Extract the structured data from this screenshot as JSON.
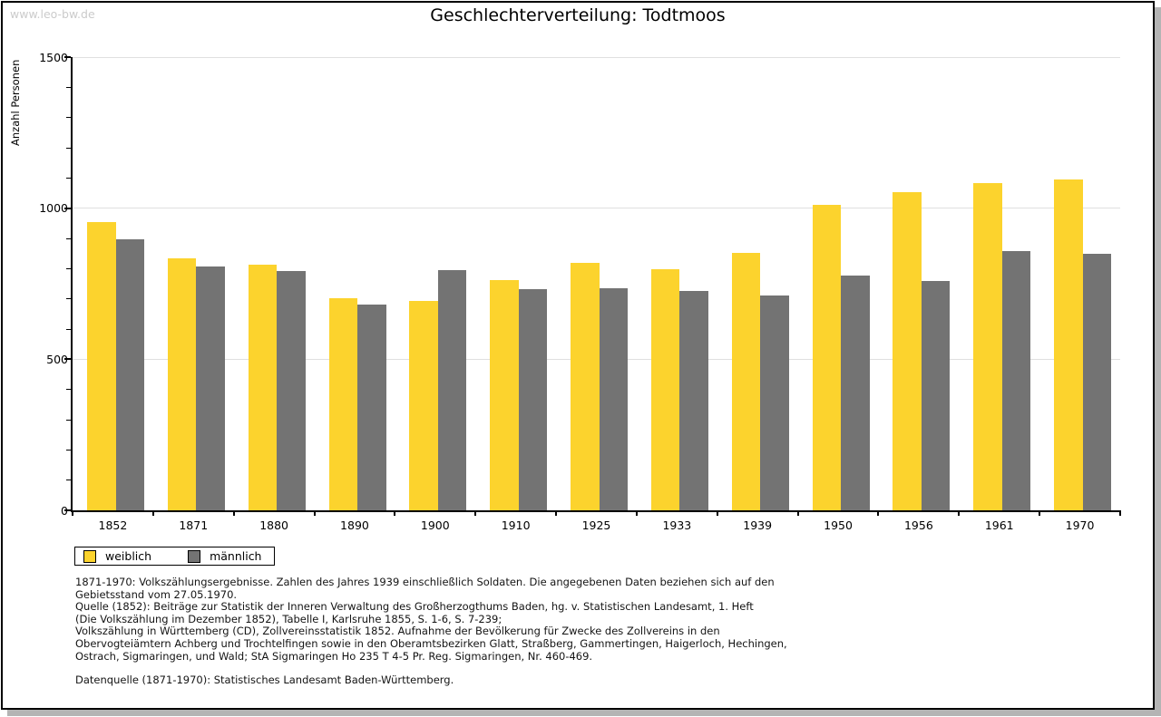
{
  "watermark": "www.leo-bw.de",
  "title": "Geschlechterverteilung: Todtmoos",
  "chart_data": {
    "type": "bar",
    "title": "Geschlechterverteilung: Todtmoos",
    "xlabel": "",
    "ylabel": "Anzahl Personen",
    "ylim": [
      0,
      1500
    ],
    "y_major_ticks": [
      0,
      500,
      1000,
      1500
    ],
    "y_minor_tick_step": 100,
    "grid": "horizontal-light-gray",
    "legend_position": "bottom-left",
    "categories": [
      "1852",
      "1871",
      "1880",
      "1890",
      "1900",
      "1910",
      "1925",
      "1933",
      "1939",
      "1950",
      "1956",
      "1961",
      "1970"
    ],
    "series": [
      {
        "name": "weiblich",
        "key": "weiblich",
        "color": "#fcd32d",
        "values": [
          954,
          833,
          814,
          701,
          693,
          763,
          820,
          799,
          852,
          1012,
          1053,
          1084,
          1096
        ]
      },
      {
        "name": "männlich",
        "key": "maennlich",
        "color": "#737373",
        "values": [
          897,
          808,
          791,
          682,
          795,
          731,
          736,
          727,
          712,
          778,
          758,
          858,
          850
        ]
      }
    ]
  },
  "legend": {
    "items": [
      {
        "label": "weiblich",
        "key": "weiblich",
        "color": "#fcd32d"
      },
      {
        "label": "männlich",
        "key": "maennlich",
        "color": "#737373"
      }
    ]
  },
  "footnotes": {
    "lines": [
      "1871-1970: Volkszählungsergebnisse. Zahlen des Jahres 1939 einschließlich Soldaten. Die angegebenen Daten beziehen sich auf den",
      "Gebietsstand vom 27.05.1970.",
      "Quelle (1852): Beiträge zur Statistik der Inneren Verwaltung des Großherzogthums Baden, hg. v. Statistischen Landesamt, 1. Heft",
      "(Die Volkszählung im Dezember 1852), Tabelle I, Karlsruhe 1855, S. 1-6, S. 7-239;",
      "Volkszählung in Württemberg (CD), Zollvereinsstatistik 1852. Aufnahme der Bevölkerung für Zwecke des Zollvereins in den",
      "Obervogteiämtern Achberg und Trochtelfingen sowie in den Oberamtsbezirken Glatt, Straßberg, Gammertingen, Haigerloch, Hechingen,",
      "Ostrach, Sigmaringen, und Wald; StA Sigmaringen Ho 235 T 4-5 Pr. Reg. Sigmaringen, Nr. 460-469."
    ],
    "datenquelle": "Datenquelle (1871-1970): Statistisches Landesamt Baden-Württemberg."
  }
}
